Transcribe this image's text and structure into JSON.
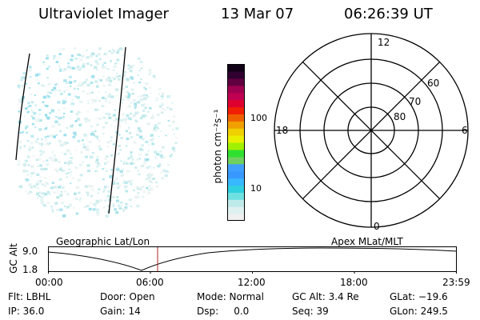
{
  "header": {
    "instrument": "Ultraviolet Imager",
    "date": "13 Mar 07",
    "time": "06:26:39 UT"
  },
  "colorbar": {
    "label": "photon cm⁻²s⁻¹",
    "ticks": [
      "100",
      "10"
    ],
    "colors": [
      "#f0f0f0",
      "#dff0f0",
      "#bfeaea",
      "#6fe0e0",
      "#30d0e0",
      "#38b8ff",
      "#3898ff",
      "#40a0ff",
      "#70d060",
      "#30e030",
      "#a0f000",
      "#e8f000",
      "#f0d000",
      "#f0a000",
      "#f06000",
      "#f02000",
      "#e00030",
      "#c00050",
      "#a00050",
      "#600040",
      "#300030",
      "#100018"
    ]
  },
  "polar": {
    "labels": {
      "top": "12",
      "left": "18",
      "right": "6",
      "bottom": "0"
    },
    "rings": [
      "60",
      "70",
      "80"
    ]
  },
  "timeline": {
    "left_caption": "Geographic Lat/Lon",
    "right_caption": "Apex MLat/MLT",
    "ylabel": "GC Alt",
    "ymax": "9.0",
    "ymin": "1.8",
    "ticks": [
      "00:00",
      "06:00",
      "12:00",
      "18:00",
      "23:59"
    ]
  },
  "info": {
    "row1": {
      "flt": "Flt: LBHL",
      "door": "Door: Open",
      "mode": "Mode: Normal",
      "gcalt": "GC Alt: 3.4 Re",
      "glat": "GLat: −19.6"
    },
    "row2": {
      "ip": "IP: 36.0",
      "gain": "Gain: 14",
      "dsp": "Dsp:     0.0",
      "seq": "Seq: 39",
      "glon": "GLon: 249.5"
    }
  }
}
